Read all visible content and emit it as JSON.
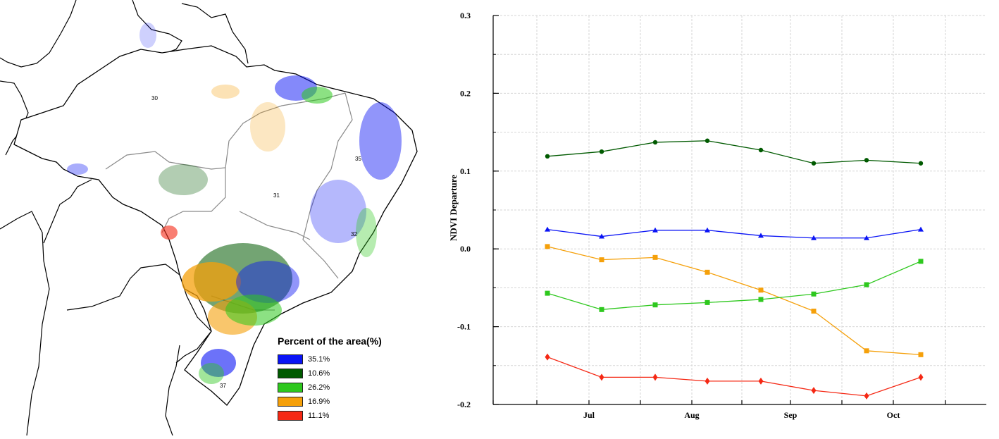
{
  "map": {
    "region_labels": [
      "30",
      "31",
      "35",
      "32",
      "37"
    ],
    "legend": {
      "title": "Percent of the area(%)",
      "items": [
        {
          "label": "35.1%",
          "color": "#0a14f5"
        },
        {
          "label": "10.6%",
          "color": "#005a00"
        },
        {
          "label": "26.2%",
          "color": "#2ec81e"
        },
        {
          "label": "16.9%",
          "color": "#f5a00a"
        },
        {
          "label": "11.1%",
          "color": "#f52814"
        }
      ]
    }
  },
  "chart_data": {
    "type": "line",
    "xlabel": "",
    "ylabel": "NDVI Departure",
    "ylim": [
      -0.2,
      0.3
    ],
    "yticks": [
      "0.3",
      "0.2",
      "0.1",
      "0.0",
      "-0.1",
      "-0.2"
    ],
    "x_month_labels": [
      "Jul",
      "Aug",
      "Sep",
      "Oct"
    ],
    "grid": true,
    "series": [
      {
        "color": "#005a00",
        "marker": "circle",
        "values": [
          0.119,
          0.125,
          0.137,
          0.139,
          0.127,
          0.11,
          0.114,
          0.11
        ]
      },
      {
        "color": "#0a14f5",
        "marker": "triangle",
        "values": [
          0.025,
          0.016,
          0.024,
          0.024,
          0.017,
          0.014,
          0.014,
          0.025
        ]
      },
      {
        "color": "#f5a00a",
        "marker": "square",
        "values": [
          0.003,
          -0.014,
          -0.011,
          -0.03,
          -0.053,
          -0.08,
          -0.131,
          -0.136
        ]
      },
      {
        "color": "#2ec81e",
        "marker": "square",
        "values": [
          -0.057,
          -0.078,
          -0.072,
          -0.069,
          -0.065,
          -0.058,
          -0.046,
          -0.016
        ]
      },
      {
        "color": "#f52814",
        "marker": "diamond",
        "values": [
          -0.139,
          -0.165,
          -0.165,
          -0.17,
          -0.17,
          -0.182,
          -0.189,
          -0.165
        ]
      }
    ]
  }
}
